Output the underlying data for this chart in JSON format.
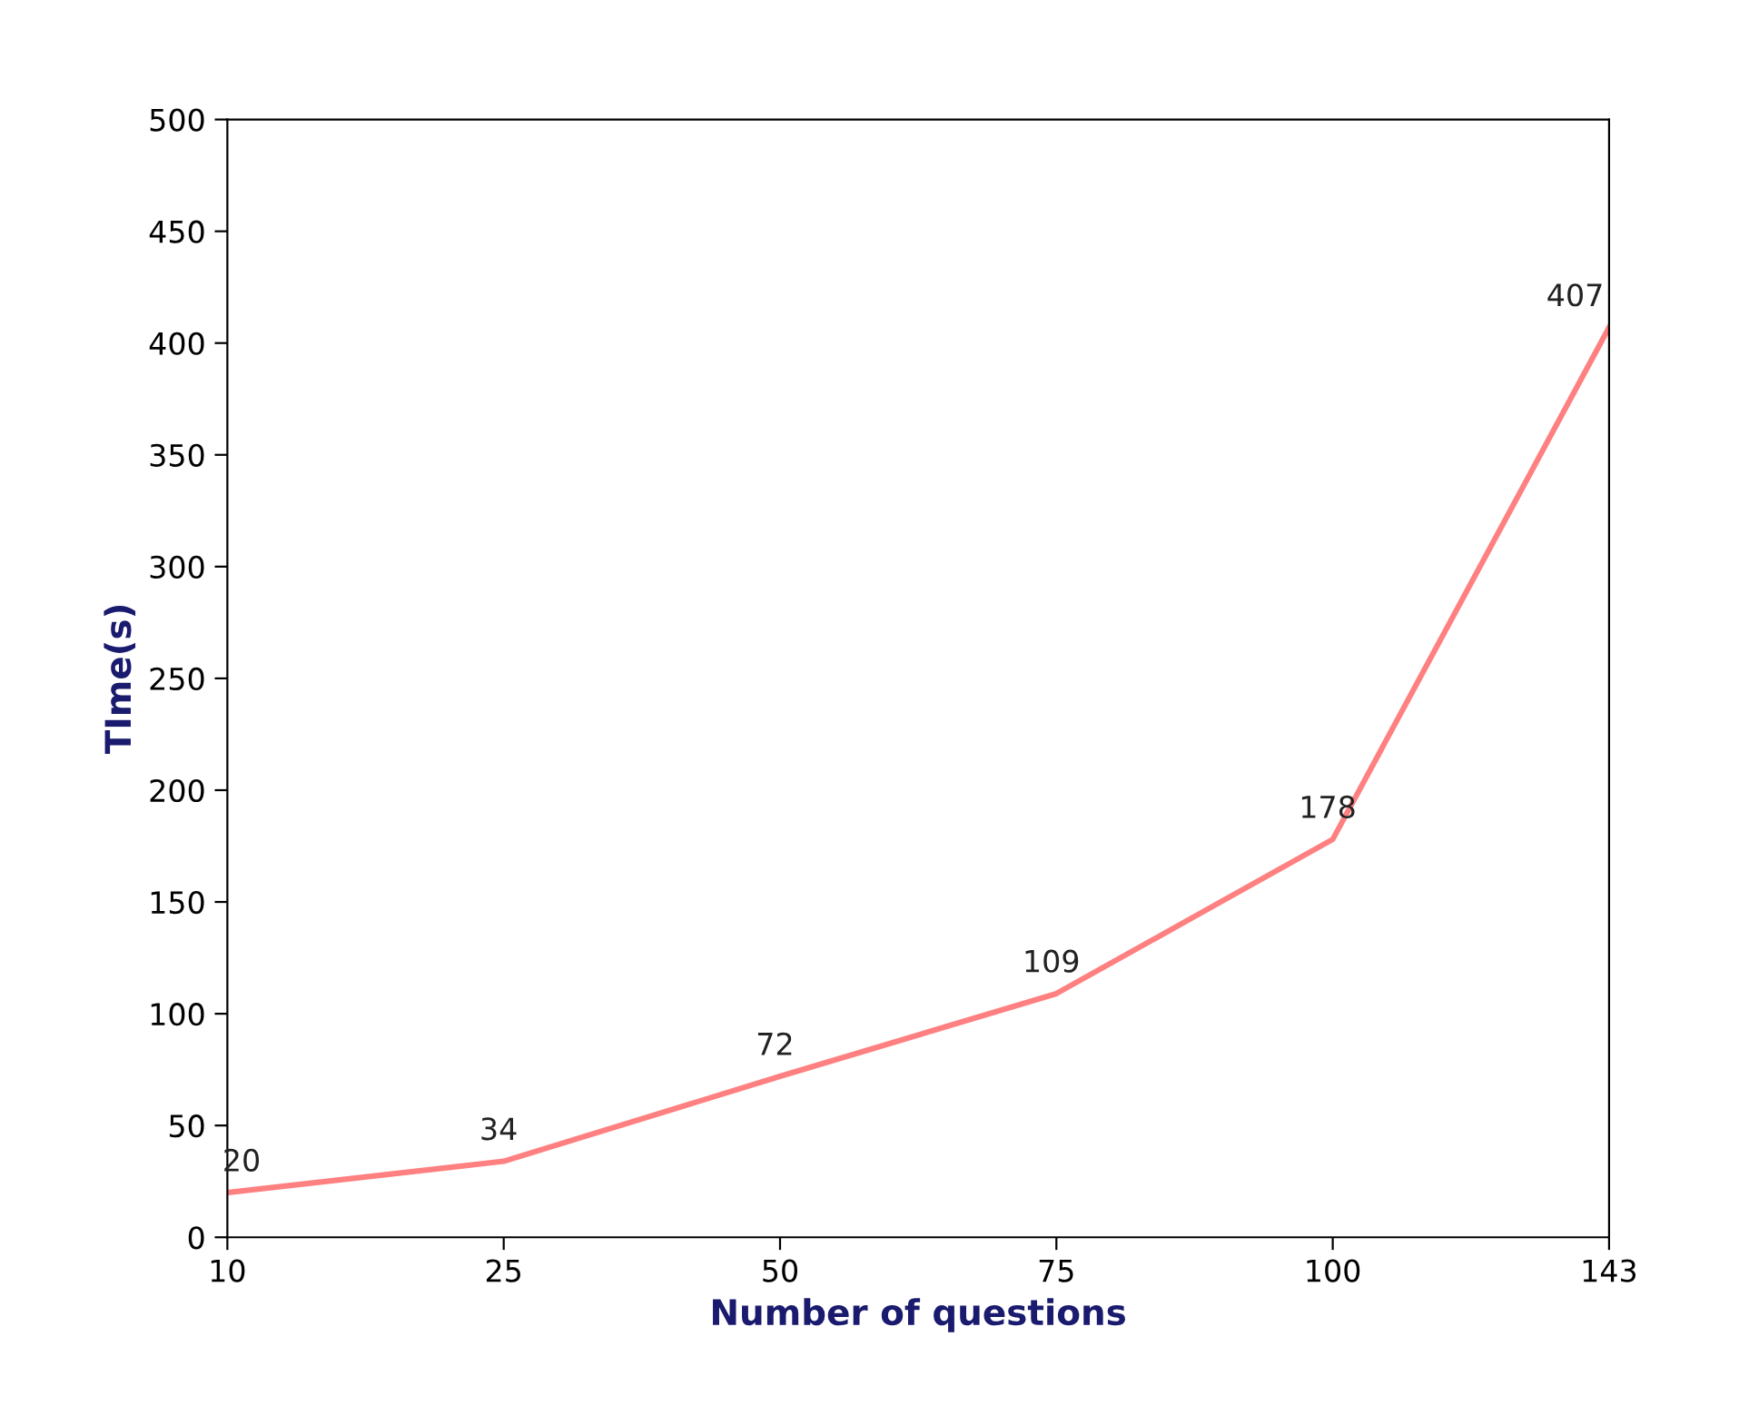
{
  "chart_data": {
    "type": "line",
    "xlabel": "Number of questions",
    "ylabel": "TIme(s)",
    "categories": [
      "10",
      "25",
      "50",
      "75",
      "100",
      "143"
    ],
    "series": [
      {
        "color": "#ff8080",
        "values": [
          20,
          34,
          72,
          109,
          178,
          407
        ]
      }
    ],
    "ylim": [
      0,
      500
    ],
    "yticks": [
      0,
      50,
      100,
      150,
      200,
      250,
      300,
      350,
      400,
      450,
      500
    ],
    "grid": false,
    "data_labels": true,
    "marker": "none",
    "line_style": "solid"
  }
}
